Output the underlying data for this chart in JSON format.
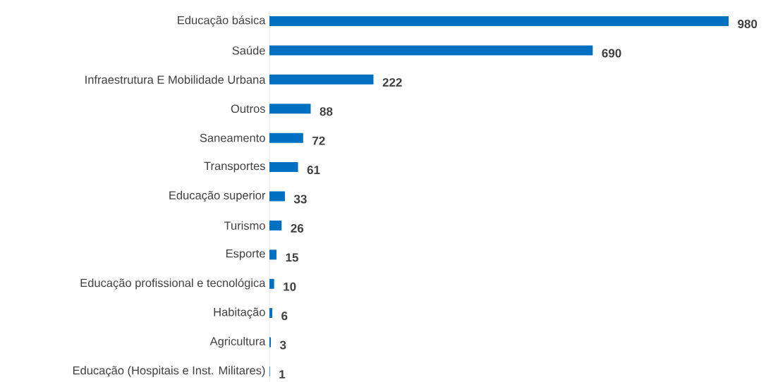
{
  "chart_data": {
    "type": "bar",
    "orientation": "horizontal",
    "categories": [
      "Educação básica",
      "Saúde",
      "Infraestrutura E Mobilidade Urbana",
      "Outros",
      "Saneamento",
      "Transportes",
      "Educação superior",
      "Turismo",
      "Esporte",
      "Educação profissional e tecnológica",
      "Habitação",
      "Agricultura",
      "Educação (Hospitais e Inst. Militares)"
    ],
    "values": [
      980,
      690,
      222,
      88,
      72,
      61,
      33,
      26,
      15,
      10,
      6,
      3,
      1
    ],
    "color": "#0070c0",
    "data_labels": true
  }
}
